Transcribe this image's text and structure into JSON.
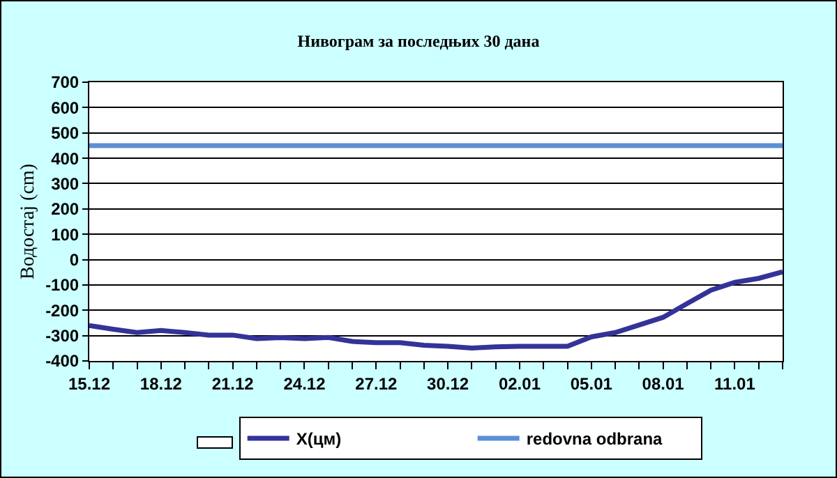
{
  "chart_data": {
    "type": "line",
    "title": "Нивограм за последњих 30 дана",
    "ylabel": "Водостај (cm)",
    "categories": [
      "15.12",
      null,
      null,
      "18.12",
      null,
      null,
      "21.12",
      null,
      null,
      "24.12",
      null,
      null,
      "27.12",
      null,
      null,
      "30.12",
      null,
      null,
      "02.01",
      null,
      null,
      "05.01",
      null,
      null,
      "08.01",
      null,
      null,
      "11.01",
      null,
      null
    ],
    "series": [
      {
        "name": "X(цм)",
        "color": "#333399",
        "values": [
          -260,
          -275,
          -288,
          -280,
          -288,
          -298,
          -298,
          -312,
          -308,
          -312,
          -307,
          -323,
          -328,
          -328,
          -338,
          -342,
          -349,
          -344,
          -342,
          -342,
          -342,
          -305,
          -288,
          -258,
          -228,
          -174,
          -121,
          -90,
          -74,
          -48
        ]
      },
      {
        "name": "redovna odbrana",
        "color": "#5b8fd6",
        "values": [
          450,
          450,
          450,
          450,
          450,
          450,
          450,
          450,
          450,
          450,
          450,
          450,
          450,
          450,
          450,
          450,
          450,
          450,
          450,
          450,
          450,
          450,
          450,
          450,
          450,
          450,
          450,
          450,
          450,
          450
        ]
      }
    ],
    "ylim": [
      -400,
      700
    ],
    "yticks": [
      -400,
      -300,
      -200,
      -100,
      0,
      100,
      200,
      300,
      400,
      500,
      600,
      700
    ],
    "grid": "y",
    "legend": "bottom",
    "marker": "none",
    "line_style": "solid"
  }
}
